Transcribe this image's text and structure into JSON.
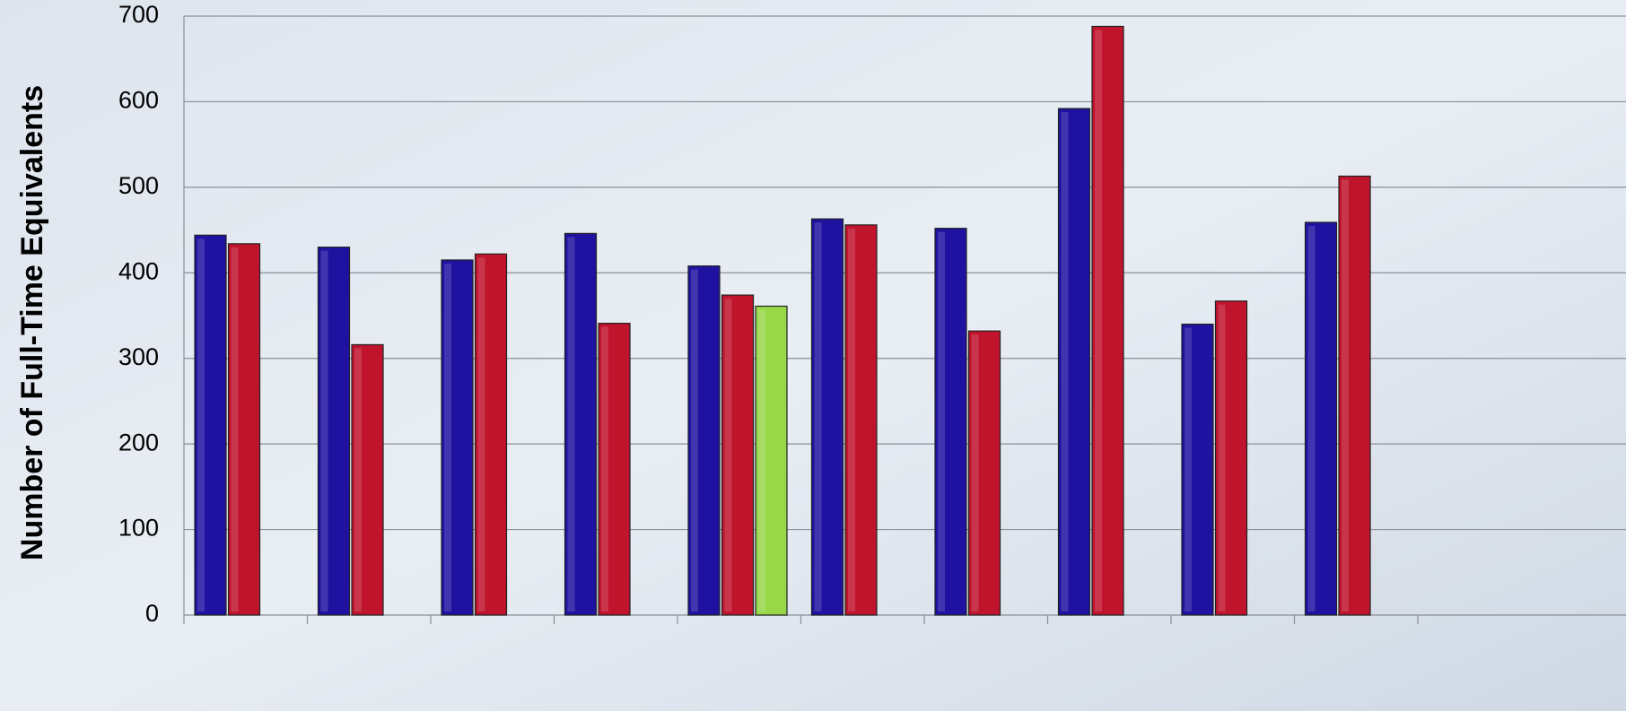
{
  "chart_data": {
    "type": "bar",
    "y_label": "Number of Full-Time Equivalents",
    "categories": [
      null,
      null,
      null,
      null,
      null,
      null,
      null,
      null,
      null,
      null
    ],
    "series": [
      {
        "color": "#1f12a0",
        "values": [
          444,
          430,
          415,
          446,
          408,
          463,
          452,
          592,
          340,
          459
        ]
      },
      {
        "color": "#c0132c",
        "values": [
          434,
          316,
          422,
          341,
          374,
          456,
          332,
          688,
          367,
          513
        ]
      },
      {
        "color": "#98d848",
        "values": [
          null,
          null,
          null,
          null,
          361,
          null,
          null,
          null,
          null,
          null
        ]
      }
    ],
    "ylim": [
      0,
      700
    ],
    "yticks": [
      0,
      100,
      200,
      300,
      400,
      500,
      600,
      700
    ],
    "grid": true
  }
}
